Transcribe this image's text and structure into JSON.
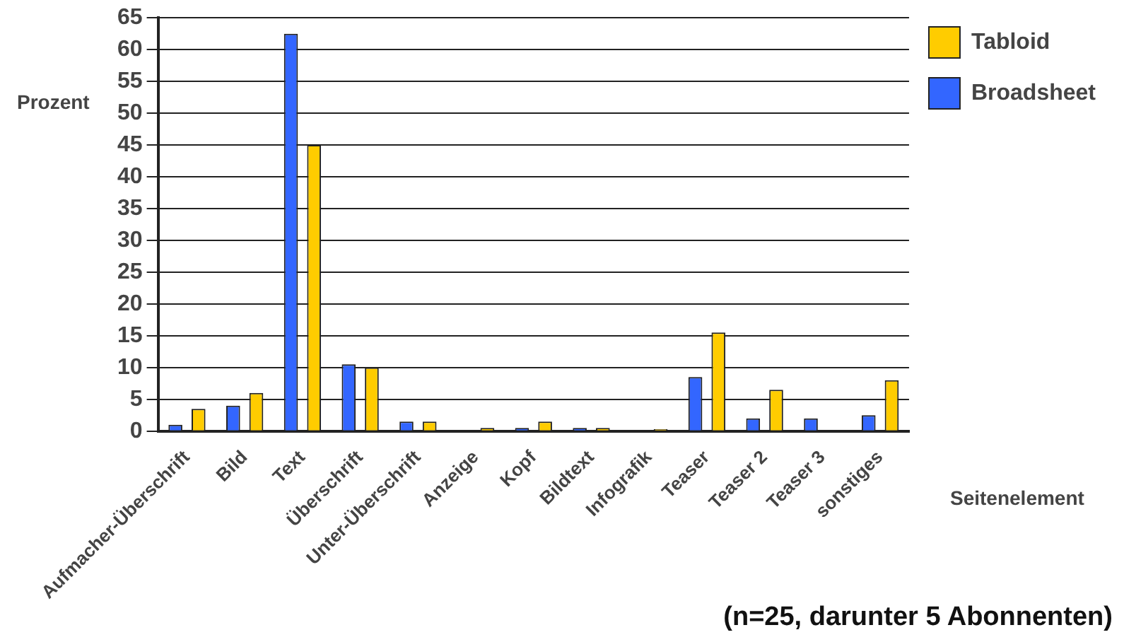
{
  "chart_data": {
    "type": "bar",
    "xlabel": "Seitenelement",
    "ylabel": "Prozent",
    "categories": [
      "Aufmacher-Überschrift",
      "Bild",
      "Text",
      "Überschrift",
      "Unter-Überschrift",
      "Anzeige",
      "Kopf",
      "Bildtext",
      "Infografik",
      "Teaser",
      "Teaser 2",
      "Teaser 3",
      "sonstiges"
    ],
    "series": [
      {
        "name": "Broadsheet",
        "color": "#3366ff",
        "values": [
          1,
          4,
          62.5,
          10.5,
          1.5,
          0,
          0.5,
          0.5,
          0,
          8.5,
          2,
          2,
          2.5
        ]
      },
      {
        "name": "Tabloid",
        "color": "#ffcc00",
        "values": [
          3.5,
          6,
          45,
          10,
          1.5,
          0.5,
          1.5,
          0.5,
          0.3,
          15.5,
          6.5,
          0,
          8
        ]
      }
    ],
    "ylim": [
      0,
      65
    ],
    "yticks": [
      0,
      5,
      10,
      15,
      20,
      25,
      30,
      35,
      40,
      45,
      50,
      55,
      60,
      65
    ],
    "grid": "y",
    "legend": "right",
    "annotations": [
      "(n=25, darunter 5 Abonnenten)"
    ]
  }
}
